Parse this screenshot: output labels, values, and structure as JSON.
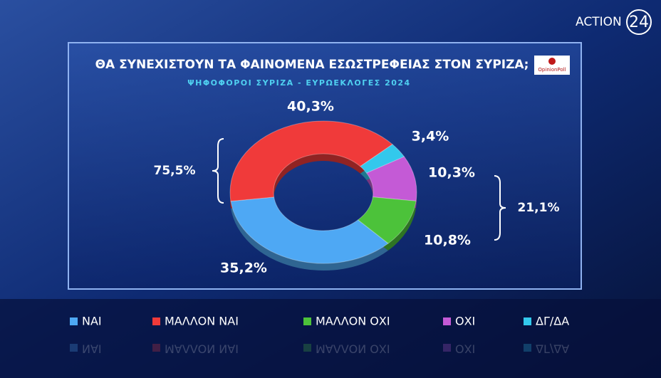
{
  "logo": {
    "brand": "ACTION",
    "number": "24"
  },
  "chart_data": {
    "type": "donut",
    "title": "ΘΑ ΣΥΝΕΧΙΣΤΟΥΝ ΤΑ ΦΑΙΝΟΜΕΝΑ ΕΣΩΣΤΡΕΦΕΙΑΣ ΣΤΟΝ ΣΥΡΙΖΑ;",
    "subtitle": "ΨΗΦΟΦΟΡΟΙ ΣΥΡΙΖΑ - ΕΥΡΩΕΚΛΟΓΕΣ 2024",
    "source": "OpinionPoll",
    "categories": [
      "ΝΑΙ",
      "ΜΑΛΛΟΝ ΝΑΙ",
      "ΜΑΛΛΟΝ ΟΧΙ",
      "ΟΧΙ",
      "ΔΓ/ΔΑ"
    ],
    "values": [
      35.2,
      40.3,
      10.8,
      10.3,
      3.4
    ],
    "value_labels": [
      "35,2%",
      "40,3%",
      "10,8%",
      "10,3%",
      "3,4%"
    ],
    "colors": [
      "#4ea8f4",
      "#f03a3a",
      "#4cc23a",
      "#c45ad6",
      "#33c8ec"
    ],
    "groups": [
      {
        "value": 75.5,
        "label": "75,5%"
      },
      {
        "value": 21.1,
        "label": "21,1%"
      }
    ]
  }
}
